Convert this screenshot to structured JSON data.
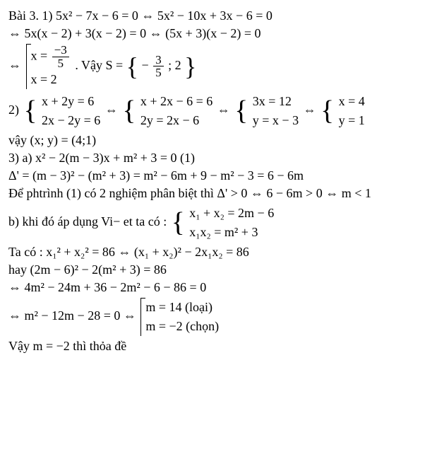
{
  "l1": "Bài 3. 1) 5x² − 7x − 6 = 0 ⇔ 5x² − 10x + 3x − 6 = 0",
  "l2": "⇔ 5x(x − 2) + 3(x − 2) = 0 ⇔ (5x + 3)(x − 2) = 0",
  "l3": {
    "pre": "⇔ ",
    "c1a_num": "−3",
    "c1a_den": "5",
    "c1a_pre": "x = ",
    "c1b": "x = 2",
    "mid": ".   Vậy S = ",
    "set_num": "3",
    "set_den": "5",
    "set_rest": "− ; 2"
  },
  "l4": {
    "pre": "2) ",
    "a1": "x + 2y = 6",
    "a2": "2x − 2y = 6",
    "b1": "x + 2x − 6 = 6",
    "b2": "2y = 2x − 6",
    "c1": "3x = 12",
    "c2": "y = x − 3",
    "d1": "x = 4",
    "d2": "y = 1"
  },
  "l5": "vậy (x; y) = (4;1)",
  "l6": "3) a) x² − 2(m − 3)x + m² + 3 = 0  (1)",
  "l7": "Δ' = (m − 3)² − (m² + 3) = m² − 6m + 9 − m² − 3 = 6 − 6m",
  "l8": "Để phtrình (1) có 2 nghiệm phân biệt thì Δ' > 0 ⇔ 6 − 6m > 0 ⇔ m < 1",
  "l9": {
    "pre": "b) khi đó áp dụng Vi− et ta có : ",
    "r1": "x₁ + x₂ = 2m − 6",
    "r2": "x₁x₂ = m² + 3"
  },
  "l10": "Ta có : x₁² + x₂² = 86 ⇔ (x₁ + x₂)² − 2x₁x₂ = 86",
  "l11": "hay (2m − 6)² − 2(m² + 3) = 86",
  "l12": "⇔ 4m² − 24m + 36 − 2m² − 6 − 86 = 0",
  "l13": {
    "pre": "⇔ m² − 12m − 28 = 0 ⇔ ",
    "r1": "m = 14 (loại)",
    "r2": "m = −2  (chọn)"
  },
  "l14": "Vậy m = −2 thì thỏa đề"
}
